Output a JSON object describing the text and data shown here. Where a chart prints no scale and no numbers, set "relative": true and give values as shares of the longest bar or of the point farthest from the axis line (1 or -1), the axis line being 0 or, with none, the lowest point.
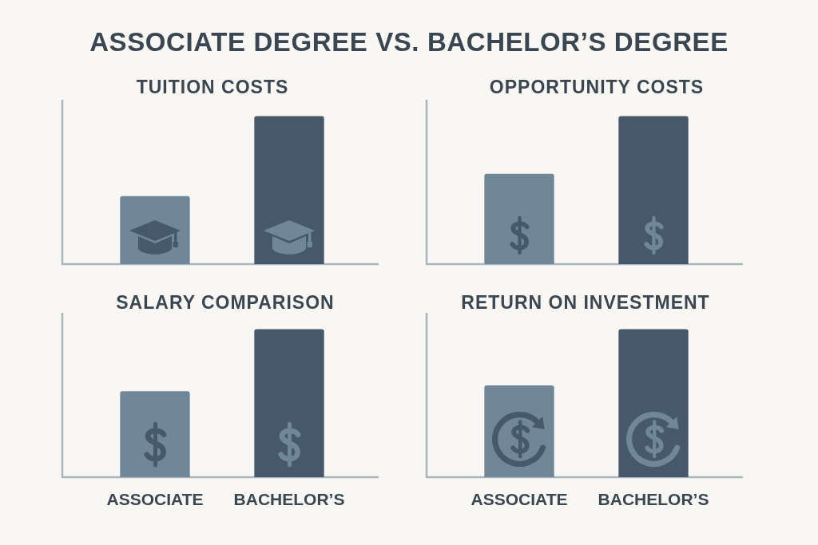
{
  "chart_data": [
    {
      "type": "other",
      "title": "ASSOCIATE DEGREE VS. BACHELOR’S DEGREE"
    },
    {
      "type": "bar",
      "title": "TUITION COSTS",
      "categories": [
        null,
        null
      ],
      "values": [
        0.46,
        1
      ],
      "colors": [
        "#6f8797",
        "#46596a"
      ],
      "relative": true
    },
    {
      "type": "bar",
      "title": "OPPORTUNITY COSTS",
      "categories": [
        null,
        null
      ],
      "values": [
        0.61,
        1
      ],
      "colors": [
        "#6f8797",
        "#46596a"
      ],
      "relative": true
    },
    {
      "type": "bar",
      "title": "SALARY COMPARISON",
      "categories": [
        "ASSOCIATE",
        "BACHELOR’S"
      ],
      "values": [
        0.58,
        1
      ],
      "colors": [
        "#6f8797",
        "#46596a"
      ],
      "relative": true,
      "tick_labels": "x"
    },
    {
      "type": "bar",
      "title": "RETURN ON INVESTMENT",
      "categories": [
        "ASSOCIATE",
        "BACHELOR’S"
      ],
      "values": [
        0.62,
        1
      ],
      "colors": [
        "#6f8797",
        "#46596a"
      ],
      "relative": true,
      "tick_labels": "x"
    }
  ]
}
